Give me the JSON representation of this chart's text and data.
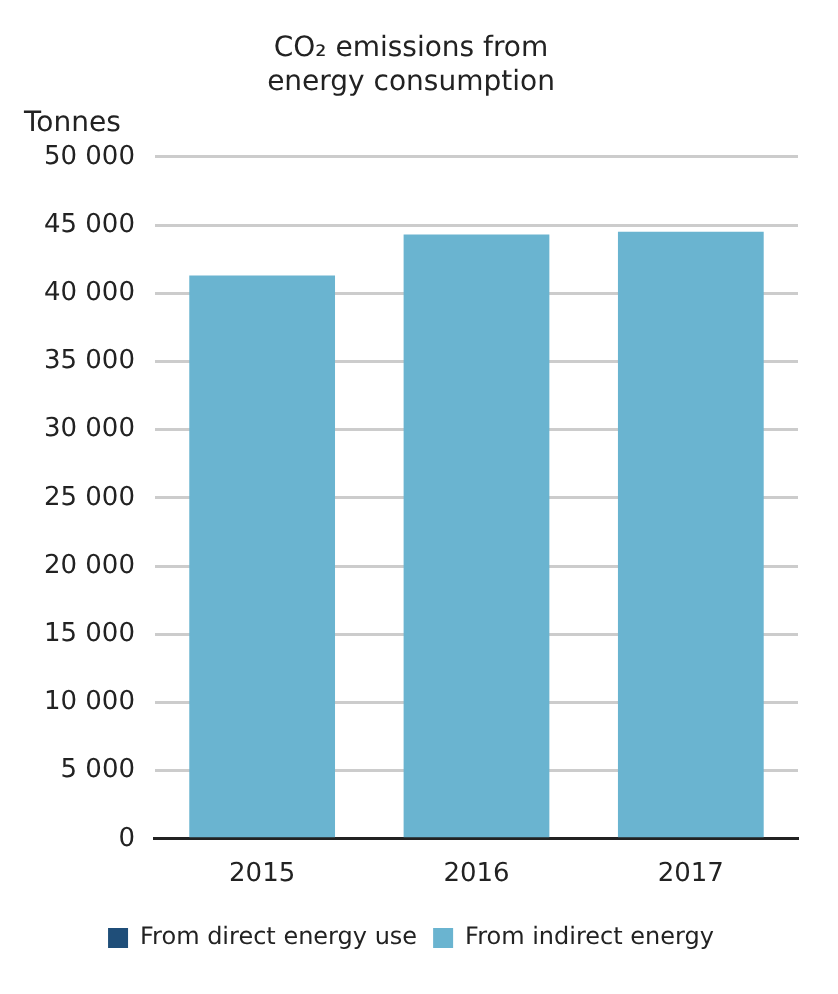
{
  "chart_data": {
    "type": "bar",
    "title": [
      "CO₂ emissions from",
      "energy consumption"
    ],
    "ylabel": "Tonnes",
    "categories": [
      "2015",
      "2016",
      "2017"
    ],
    "series": [
      {
        "name": "From direct energy use",
        "color": "#1f4e79",
        "values": [
          null,
          null,
          null
        ]
      },
      {
        "name": "From indirect energy",
        "color": "#6ab4d0",
        "values": [
          41300,
          44300,
          44500
        ]
      }
    ],
    "stacked": true,
    "ylim": [
      0,
      50000
    ],
    "yticks": [
      {
        "value": 0,
        "label": "0"
      },
      {
        "value": 5000,
        "label": "5 000"
      },
      {
        "value": 10000,
        "label": "10 000"
      },
      {
        "value": 15000,
        "label": "15 000"
      },
      {
        "value": 20000,
        "label": "20 000"
      },
      {
        "value": 25000,
        "label": "25 000"
      },
      {
        "value": 30000,
        "label": "30 000"
      },
      {
        "value": 35000,
        "label": "35 000"
      },
      {
        "value": 40000,
        "label": "40 000"
      },
      {
        "value": 45000,
        "label": "45 000"
      },
      {
        "value": 50000,
        "label": "50 000"
      }
    ],
    "grid": "y",
    "legend": "bottom"
  }
}
